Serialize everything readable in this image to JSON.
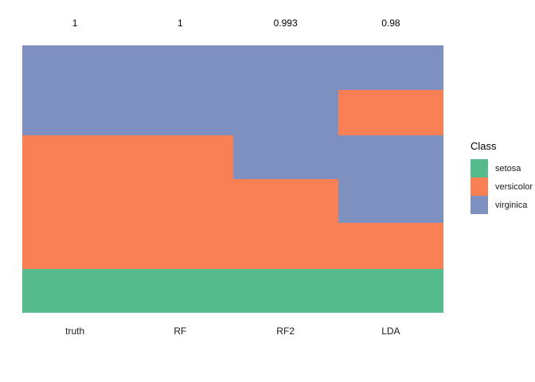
{
  "figure": {
    "background": "#ffffff"
  },
  "legend": {
    "title": "Class",
    "entries": [
      {
        "label": "setosa",
        "color": "#55BA8C"
      },
      {
        "label": "versicolor",
        "color": "#F97F55"
      },
      {
        "label": "virginica",
        "color": "#7E90BF"
      }
    ]
  },
  "chart_data": {
    "type": "heatmap",
    "title": "",
    "description": "Per-sample class assignment stripes for true labels and three classifiers; rows grouped by class",
    "legend_position": "right",
    "class_colors": {
      "setosa": "#55BA8C",
      "versicolor": "#F97F55",
      "virginica": "#7E90BF"
    },
    "x_categories": [
      "truth",
      "RF",
      "RF2",
      "LDA"
    ],
    "score_labels": [
      "1",
      "1",
      "0.993",
      "0.98"
    ],
    "columns": [
      {
        "label": "truth",
        "score_label": "1",
        "segments": [
          {
            "class": "virginica",
            "fraction": 0.336
          },
          {
            "class": "versicolor",
            "fraction": 0.5
          },
          {
            "class": "setosa",
            "fraction": 0.164
          }
        ]
      },
      {
        "label": "RF",
        "score_label": "1",
        "segments": [
          {
            "class": "virginica",
            "fraction": 0.336
          },
          {
            "class": "versicolor",
            "fraction": 0.5
          },
          {
            "class": "setosa",
            "fraction": 0.164
          }
        ]
      },
      {
        "label": "RF2",
        "score_label": "0.993",
        "segments": [
          {
            "class": "virginica",
            "fraction": 0.5
          },
          {
            "class": "versicolor",
            "fraction": 0.336
          },
          {
            "class": "setosa",
            "fraction": 0.164
          }
        ]
      },
      {
        "label": "LDA",
        "score_label": "0.98",
        "segments": [
          {
            "class": "virginica",
            "fraction": 0.167
          },
          {
            "class": "versicolor",
            "fraction": 0.17
          },
          {
            "class": "virginica",
            "fraction": 0.327
          },
          {
            "class": "versicolor",
            "fraction": 0.172
          },
          {
            "class": "setosa",
            "fraction": 0.164
          }
        ]
      }
    ]
  }
}
